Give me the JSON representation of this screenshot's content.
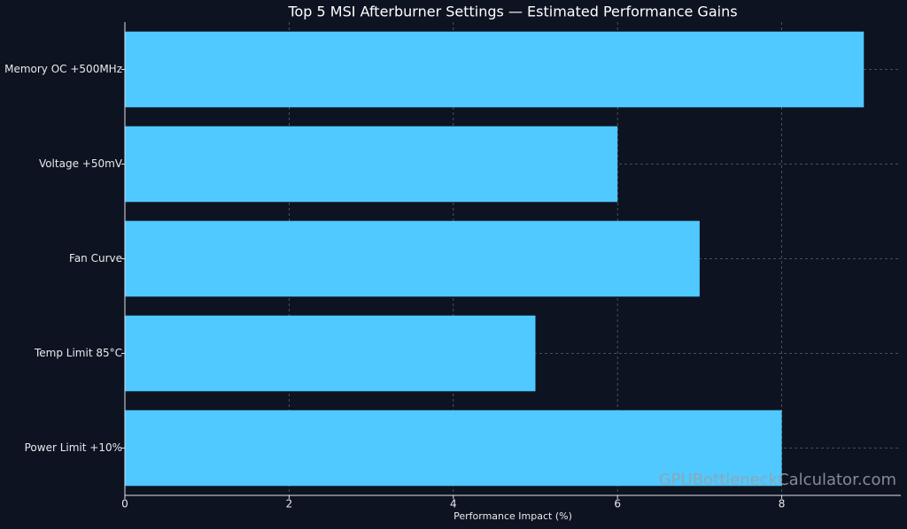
{
  "chart_data": {
    "type": "bar",
    "orientation": "horizontal",
    "title": "Top 5 MSI Afterburner Settings — Estimated Performance Gains",
    "x_label": "Performance Impact (%)",
    "categories": [
      "Memory OC +500MHz",
      "Voltage +50mV",
      "Fan Curve",
      "Temp Limit 85°C",
      "Power Limit +10%"
    ],
    "values": [
      9,
      6,
      7,
      5,
      8
    ],
    "color": "#4fc9ff",
    "xlim": [
      0,
      9.45
    ],
    "xticks": [
      0,
      2,
      4,
      6,
      8
    ],
    "grid": true,
    "watermark": "GPUBottleneckCalculator.com"
  }
}
